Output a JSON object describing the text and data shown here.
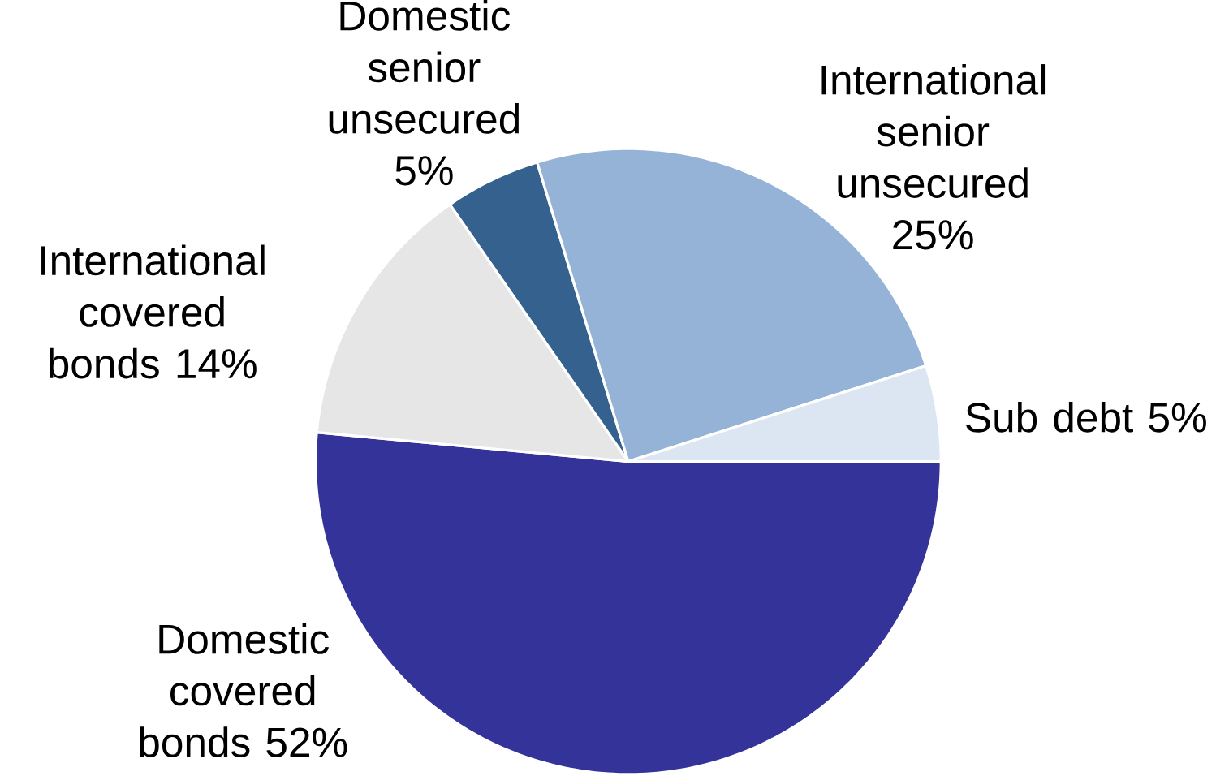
{
  "chart_data": {
    "type": "pie",
    "categories": [
      "Domestic covered bonds",
      "International covered bonds",
      "Domestic senior unsecured",
      "International senior unsecured",
      "Sub debt"
    ],
    "values": [
      52,
      14,
      5,
      25,
      5
    ],
    "value_labels": [
      "52%",
      "14%",
      "5%",
      "25%",
      "5%"
    ],
    "colors": [
      "#333399",
      "#e6e6e6",
      "#35618f",
      "#95b3d7",
      "#dce6f2"
    ]
  }
}
